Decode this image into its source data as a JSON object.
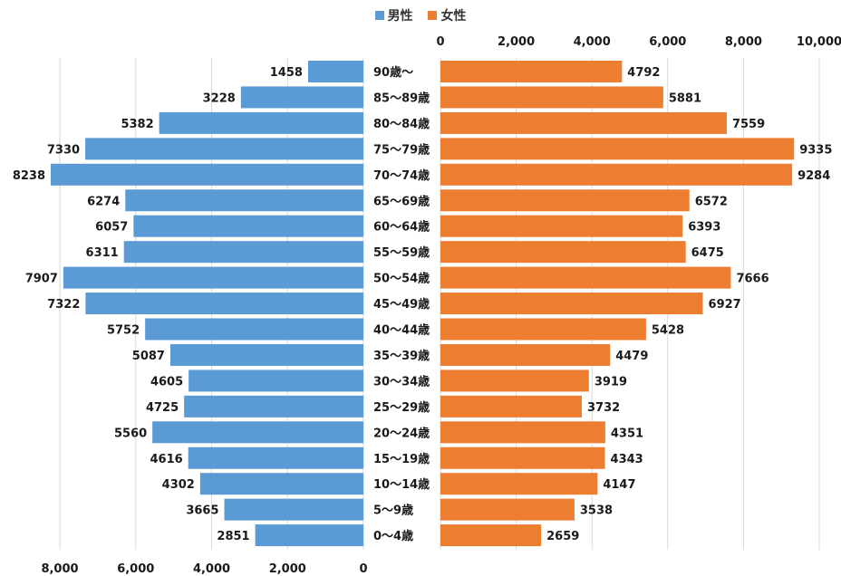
{
  "legend": {
    "male": "男性",
    "female": "女性"
  },
  "colors": {
    "male": "#5b9bd5",
    "female": "#ed7d31",
    "grid": "#d9d9d9",
    "text": "#1a1a1a"
  },
  "chart_data": {
    "type": "bar",
    "orientation": "horizontal",
    "layout": "population-pyramid",
    "categories": [
      "90歳～",
      "85～89歳",
      "80～84歳",
      "75～79歳",
      "70～74歳",
      "65～69歳",
      "60～64歳",
      "55～59歳",
      "50～54歳",
      "45～49歳",
      "40～44歳",
      "35～39歳",
      "30～34歳",
      "25～29歳",
      "20～24歳",
      "15～19歳",
      "10～14歳",
      "5～9歳",
      "0～4歳"
    ],
    "series": [
      {
        "name": "男性",
        "values": [
          1458,
          3228,
          5382,
          7330,
          8238,
          6274,
          6057,
          6311,
          7907,
          7322,
          5752,
          5087,
          4605,
          4725,
          5560,
          4616,
          4302,
          3665,
          2851
        ]
      },
      {
        "name": "女性",
        "values": [
          4792,
          5881,
          7559,
          9335,
          9284,
          6572,
          6393,
          6475,
          7666,
          6927,
          5428,
          4479,
          3919,
          3732,
          4351,
          4343,
          4147,
          3538,
          2659
        ]
      }
    ],
    "male_axis": {
      "ticks": [
        "8,000",
        "6,000",
        "4,000",
        "2,000",
        "0"
      ],
      "range": [
        0,
        8000
      ],
      "position": "bottom"
    },
    "female_axis": {
      "ticks": [
        "0",
        "2,000",
        "4,000",
        "6,000",
        "8,000",
        "10,000"
      ],
      "range": [
        0,
        10000
      ],
      "position": "top"
    },
    "legend_position": "top-center",
    "grid": true
  }
}
